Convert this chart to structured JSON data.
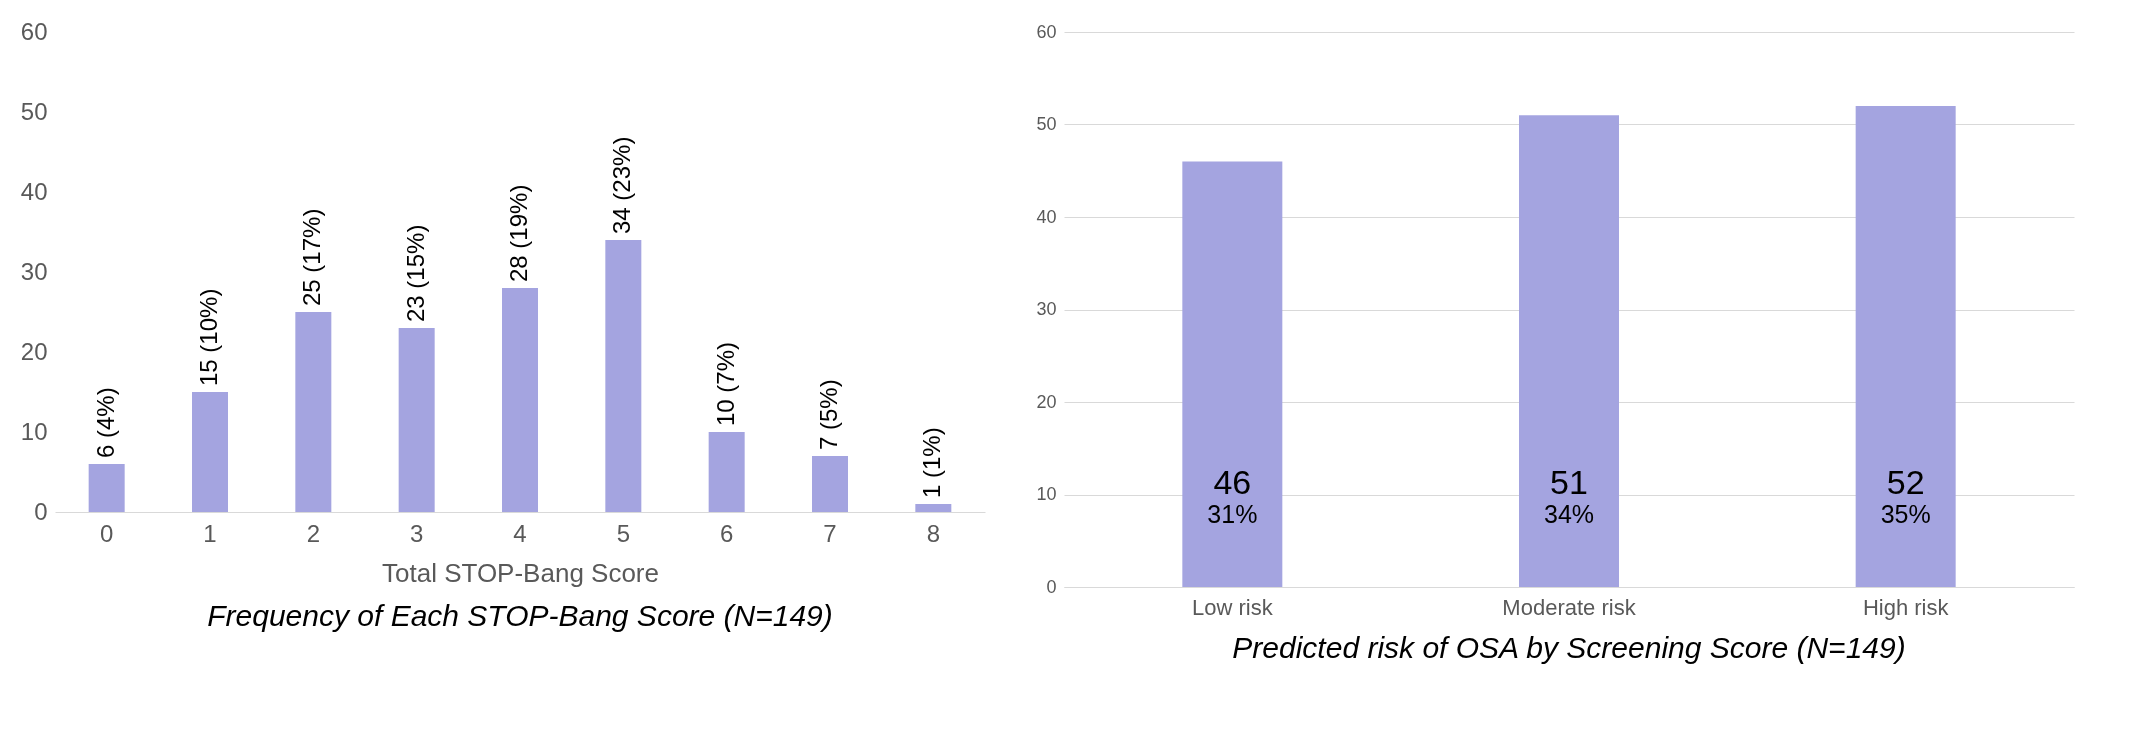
{
  "chart_data": [
    {
      "type": "bar",
      "title": "Frequency of Each STOP-Bang Score (N=149)",
      "xlabel": "Total STOP-Bang Score",
      "categories": [
        "0",
        "1",
        "2",
        "3",
        "4",
        "5",
        "6",
        "7",
        "8"
      ],
      "values": [
        6,
        15,
        25,
        23,
        28,
        34,
        10,
        7,
        1
      ],
      "value_labels": [
        "6 (4%)",
        "15 (10%)",
        "25 (17%)",
        "23 (15%)",
        "28 (19%)",
        "34 (23%)",
        "10 (7%)",
        "7 (5%)",
        "1 (1%)"
      ],
      "color": "#a4a4e0",
      "ylim": [
        0,
        60
      ],
      "yticks": [
        0,
        10,
        20,
        30,
        40,
        50,
        60
      ],
      "grid": false
    },
    {
      "type": "bar",
      "title": "Predicted risk of OSA by Screening Score (N=149)",
      "categories": [
        "Low risk",
        "Moderate risk",
        "High risk"
      ],
      "values": [
        46,
        51,
        52
      ],
      "value_labels": [
        "46\n31%",
        "51\n34%",
        "52\n35%"
      ],
      "color": "#a4a4e0",
      "ylim": [
        0,
        60
      ],
      "yticks": [
        0,
        10,
        20,
        30,
        40,
        50,
        60
      ],
      "grid": "y"
    }
  ]
}
